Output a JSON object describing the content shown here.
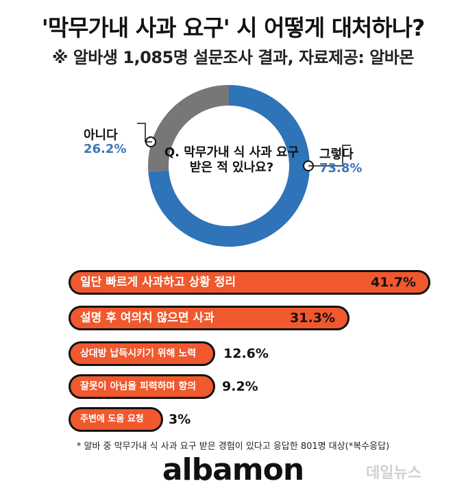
{
  "title": "'막무가내 사과 요구' 시 어떻게 대처하나?",
  "subtitle": "※ 알바생 1,085명 설문조사 결과, 자료제공: 알바몬",
  "chart_data": [
    {
      "type": "pie",
      "center_text": "Q.  막무가내 식 사과 요구 받은 적 있나요?",
      "slices": [
        {
          "label": "그렇다",
          "value": 73.8,
          "value_text": "73.8%",
          "color": "#2f73b8"
        },
        {
          "label": "아니다",
          "value": 26.2,
          "value_text": "26.2%",
          "color": "#777777"
        }
      ]
    },
    {
      "type": "bar",
      "orientation": "horizontal",
      "categories": [
        "일단 빠르게 사과하고 상황 정리",
        "설명 후 여의치 않으면 사과",
        "상대방 납득시키기 위해 노력",
        "잘못이 아님을 피력하며 항의",
        "주변에 도움 요청"
      ],
      "values": [
        41.7,
        31.3,
        12.6,
        9.2,
        3
      ],
      "value_labels": [
        "41.7%",
        "31.3%",
        "12.6%",
        "9.2%",
        "3%"
      ],
      "bar_color": "#f0582e"
    }
  ],
  "footnote": "* 알바 중 막무가내 식 사과 요구 받은 경험이 있다고 응답한 801명 대상(*복수응답)",
  "brand": "albamon",
  "watermark": "데일뉴스"
}
